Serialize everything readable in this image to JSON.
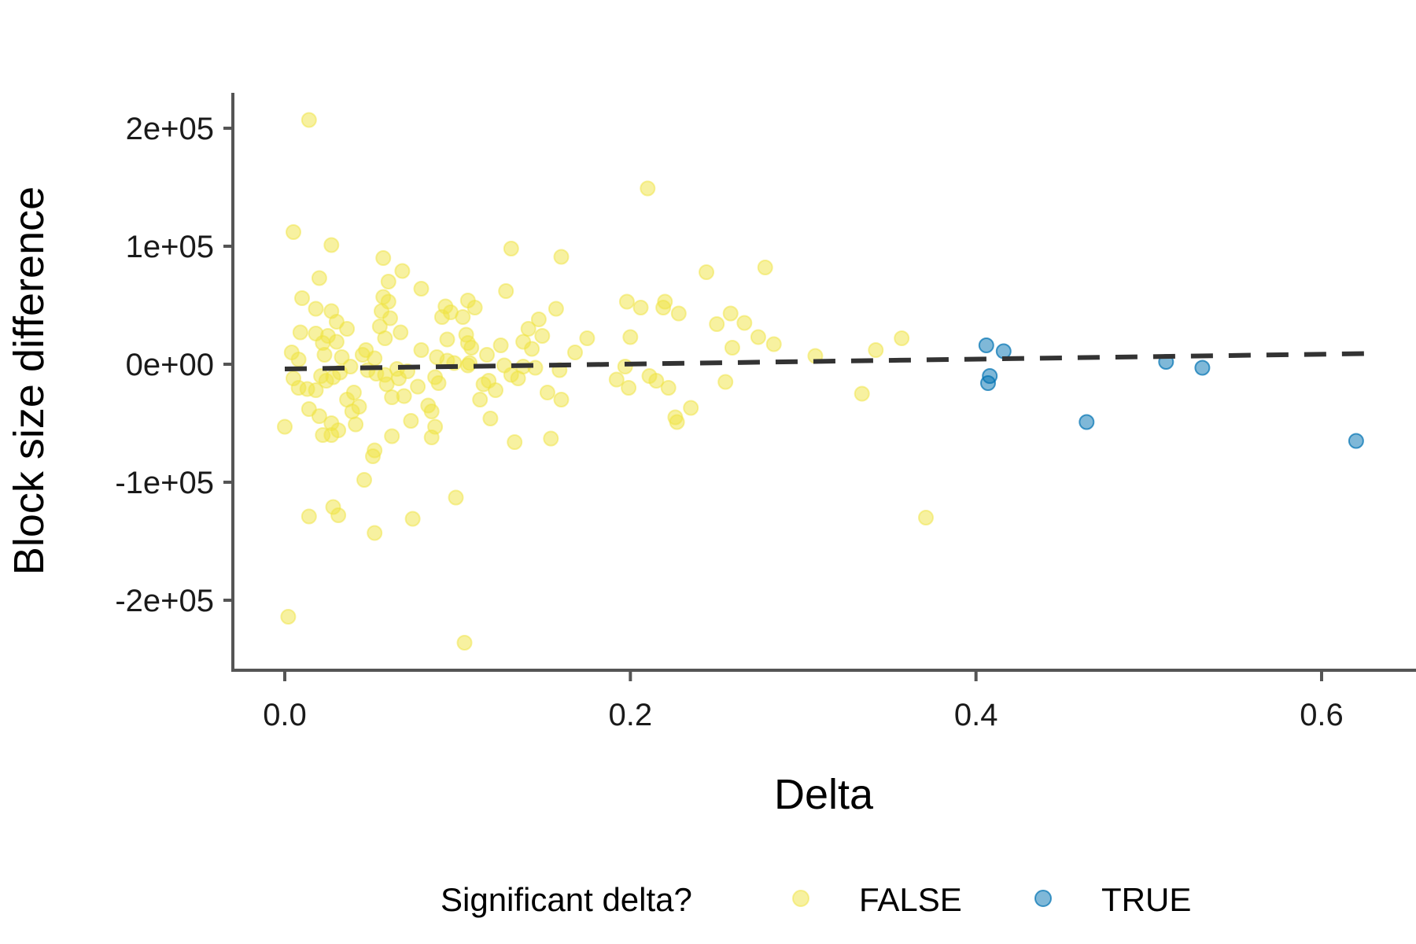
{
  "chart_data": {
    "type": "scatter",
    "xlabel": "Delta",
    "ylabel": "Block size difference",
    "xlim": [
      -0.015,
      0.65
    ],
    "ylim": [
      -260000,
      230000
    ],
    "x_ticks": [
      0.0,
      0.2,
      0.4,
      0.6
    ],
    "x_tick_labels": [
      "0.0",
      "0.2",
      "0.4",
      "0.6"
    ],
    "y_ticks": [
      200000,
      100000,
      0,
      -100000,
      -200000
    ],
    "y_tick_labels": [
      "2e+05",
      "1e+05",
      "0e+00",
      "-1e+05",
      "-2e+05"
    ],
    "grid": false,
    "legend": {
      "title": "Significant delta?",
      "placement": "bottom",
      "entries": [
        "FALSE",
        "TRUE"
      ]
    },
    "trend_line": {
      "style": "dashed",
      "color": "#333333",
      "x": [
        0.0,
        0.625
      ],
      "y": [
        -4000,
        9000
      ]
    },
    "series": [
      {
        "name": "FALSE",
        "color": "#F0E442",
        "opacity": 0.5,
        "points": [
          [
            0.014,
            207000
          ],
          [
            0.005,
            112000
          ],
          [
            0.027,
            101000
          ],
          [
            0.02,
            73000
          ],
          [
            0.01,
            56000
          ],
          [
            0.018,
            47000
          ],
          [
            0.027,
            45000
          ],
          [
            0.03,
            36000
          ],
          [
            0.009,
            27000
          ],
          [
            0.018,
            26000
          ],
          [
            0.025,
            24000
          ],
          [
            0.022,
            18000
          ],
          [
            0.03,
            19000
          ],
          [
            0.036,
            30000
          ],
          [
            0.004,
            10000
          ],
          [
            0.008,
            4000
          ],
          [
            0.023,
            8000
          ],
          [
            0.033,
            6000
          ],
          [
            0.038,
            -2000
          ],
          [
            0.045,
            8000
          ],
          [
            0.047,
            12000
          ],
          [
            0.052,
            5000
          ],
          [
            0.048,
            -5000
          ],
          [
            0.053,
            -8000
          ],
          [
            0.005,
            -12000
          ],
          [
            0.008,
            -20000
          ],
          [
            0.013,
            -21000
          ],
          [
            0.018,
            -22000
          ],
          [
            0.021,
            -10000
          ],
          [
            0.024,
            -14000
          ],
          [
            0.028,
            -11000
          ],
          [
            0.032,
            -7000
          ],
          [
            0.036,
            -30000
          ],
          [
            0.04,
            -24000
          ],
          [
            0.043,
            -36000
          ],
          [
            0.014,
            -38000
          ],
          [
            0.02,
            -44000
          ],
          [
            0.027,
            -50000
          ],
          [
            0.031,
            -56000
          ],
          [
            0.022,
            -60000
          ],
          [
            0.027,
            -60000
          ],
          [
            0.039,
            -40000
          ],
          [
            0.041,
            -51000
          ],
          [
            0.052,
            -73000
          ],
          [
            0.051,
            -78000
          ],
          [
            0.062,
            -61000
          ],
          [
            0.046,
            -98000
          ],
          [
            0.0,
            -53000
          ],
          [
            0.014,
            -129000
          ],
          [
            0.028,
            -121000
          ],
          [
            0.031,
            -128000
          ],
          [
            0.052,
            -143000
          ],
          [
            0.074,
            -131000
          ],
          [
            0.002,
            -214000
          ],
          [
            0.104,
            -236000
          ],
          [
            0.099,
            -113000
          ],
          [
            0.057,
            90000
          ],
          [
            0.068,
            79000
          ],
          [
            0.06,
            70000
          ],
          [
            0.057,
            57000
          ],
          [
            0.06,
            53000
          ],
          [
            0.056,
            45000
          ],
          [
            0.061,
            39000
          ],
          [
            0.055,
            32000
          ],
          [
            0.067,
            27000
          ],
          [
            0.058,
            22000
          ],
          [
            0.079,
            64000
          ],
          [
            0.093,
            49000
          ],
          [
            0.091,
            40000
          ],
          [
            0.096,
            44000
          ],
          [
            0.103,
            40000
          ],
          [
            0.106,
            54000
          ],
          [
            0.11,
            48000
          ],
          [
            0.094,
            21000
          ],
          [
            0.105,
            25000
          ],
          [
            0.106,
            18000
          ],
          [
            0.108,
            14000
          ],
          [
            0.079,
            12000
          ],
          [
            0.088,
            6000
          ],
          [
            0.094,
            3000
          ],
          [
            0.098,
            1000
          ],
          [
            0.107,
            1000
          ],
          [
            0.106,
            -1000
          ],
          [
            0.065,
            -4000
          ],
          [
            0.071,
            -6000
          ],
          [
            0.058,
            -9000
          ],
          [
            0.066,
            -12000
          ],
          [
            0.059,
            -17000
          ],
          [
            0.062,
            -28000
          ],
          [
            0.069,
            -27000
          ],
          [
            0.077,
            -19000
          ],
          [
            0.087,
            -11000
          ],
          [
            0.089,
            -16000
          ],
          [
            0.083,
            -35000
          ],
          [
            0.085,
            -40000
          ],
          [
            0.073,
            -48000
          ],
          [
            0.087,
            -53000
          ],
          [
            0.085,
            -62000
          ],
          [
            0.113,
            -30000
          ],
          [
            0.119,
            -46000
          ],
          [
            0.118,
            -14000
          ],
          [
            0.122,
            -22000
          ],
          [
            0.115,
            -17000
          ],
          [
            0.127,
            -1000
          ],
          [
            0.131,
            -9000
          ],
          [
            0.135,
            -12000
          ],
          [
            0.138,
            -2000
          ],
          [
            0.145,
            -3000
          ],
          [
            0.128,
            62000
          ],
          [
            0.131,
            98000
          ],
          [
            0.138,
            19000
          ],
          [
            0.141,
            30000
          ],
          [
            0.147,
            38000
          ],
          [
            0.149,
            24000
          ],
          [
            0.143,
            13000
          ],
          [
            0.125,
            16000
          ],
          [
            0.117,
            8000
          ],
          [
            0.152,
            -24000
          ],
          [
            0.154,
            -63000
          ],
          [
            0.133,
            -66000
          ],
          [
            0.159,
            -5000
          ],
          [
            0.16,
            -30000
          ],
          [
            0.157,
            47000
          ],
          [
            0.16,
            91000
          ],
          [
            0.175,
            22000
          ],
          [
            0.168,
            10000
          ],
          [
            0.192,
            -13000
          ],
          [
            0.197,
            -2000
          ],
          [
            0.199,
            -20000
          ],
          [
            0.2,
            23000
          ],
          [
            0.198,
            53000
          ],
          [
            0.206,
            48000
          ],
          [
            0.21,
            149000
          ],
          [
            0.211,
            -10000
          ],
          [
            0.215,
            -14000
          ],
          [
            0.219,
            48000
          ],
          [
            0.22,
            53000
          ],
          [
            0.222,
            -20000
          ],
          [
            0.228,
            43000
          ],
          [
            0.226,
            -45000
          ],
          [
            0.227,
            -49000
          ],
          [
            0.235,
            -37000
          ],
          [
            0.244,
            78000
          ],
          [
            0.25,
            34000
          ],
          [
            0.255,
            -15000
          ],
          [
            0.258,
            43000
          ],
          [
            0.259,
            14000
          ],
          [
            0.266,
            35000
          ],
          [
            0.274,
            23000
          ],
          [
            0.278,
            82000
          ],
          [
            0.283,
            17000
          ],
          [
            0.307,
            7000
          ],
          [
            0.334,
            -25000
          ],
          [
            0.342,
            12000
          ],
          [
            0.357,
            22000
          ],
          [
            0.371,
            -130000
          ]
        ]
      },
      {
        "name": "TRUE",
        "color": "#0072B2",
        "opacity": 0.5,
        "points": [
          [
            0.406,
            16000
          ],
          [
            0.416,
            11000
          ],
          [
            0.408,
            -10000
          ],
          [
            0.407,
            -16000
          ],
          [
            0.464,
            -49000
          ],
          [
            0.51,
            2000
          ],
          [
            0.531,
            -3000
          ],
          [
            0.62,
            -65000
          ]
        ]
      }
    ]
  }
}
